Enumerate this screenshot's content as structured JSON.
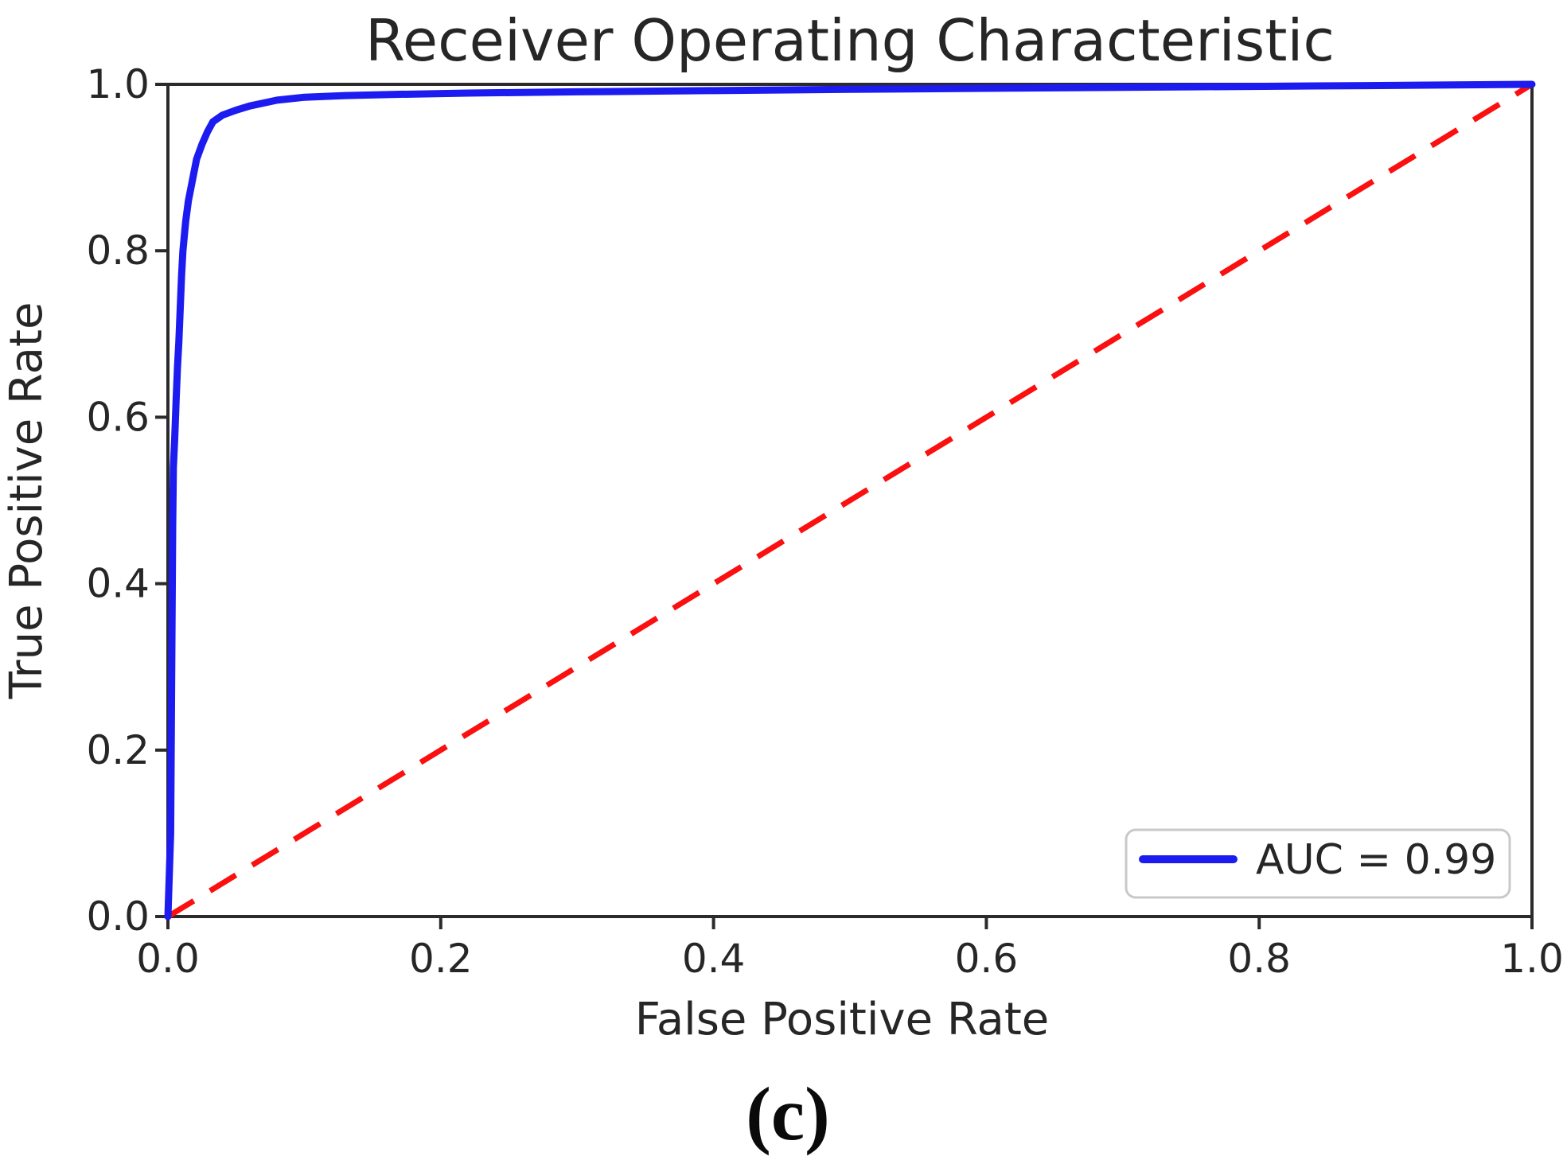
{
  "figure": {
    "title": "Receiver Operating Characteristic",
    "xlabel": "False Positive Rate",
    "ylabel": "True Positive Rate",
    "caption": "(c)"
  },
  "legend": {
    "label": "AUC = 0.99"
  },
  "colors": {
    "roc_line": "#1c1cf0",
    "chance_line": "#fb0f0f",
    "axis": "#2b2b2b",
    "text": "#262626",
    "legend_border": "#c9c9c9",
    "background": "#ffffff"
  },
  "chart_data": {
    "type": "line",
    "title": "Receiver Operating Characteristic",
    "xlabel": "False Positive Rate",
    "ylabel": "True Positive Rate",
    "xlim": [
      0.0,
      1.0
    ],
    "ylim": [
      0.0,
      1.0
    ],
    "x_ticks": [
      0.0,
      0.2,
      0.4,
      0.6,
      0.8,
      1.0
    ],
    "y_ticks": [
      0.0,
      0.2,
      0.4,
      0.6,
      0.8,
      1.0
    ],
    "grid": false,
    "legend_position": "lower right",
    "auc": 0.99,
    "series": [
      {
        "name": "ROC curve",
        "label": "AUC = 0.99",
        "color": "#1c1cf0",
        "style": "solid",
        "points": [
          [
            0.0,
            0.0
          ],
          [
            0.002,
            0.1
          ],
          [
            0.003,
            0.35
          ],
          [
            0.0035,
            0.47
          ],
          [
            0.004,
            0.54
          ],
          [
            0.005,
            0.575
          ],
          [
            0.006,
            0.62
          ],
          [
            0.007,
            0.66
          ],
          [
            0.008,
            0.69
          ],
          [
            0.009,
            0.73
          ],
          [
            0.01,
            0.77
          ],
          [
            0.011,
            0.8
          ],
          [
            0.013,
            0.835
          ],
          [
            0.015,
            0.86
          ],
          [
            0.018,
            0.885
          ],
          [
            0.021,
            0.91
          ],
          [
            0.025,
            0.928
          ],
          [
            0.029,
            0.943
          ],
          [
            0.033,
            0.955
          ],
          [
            0.04,
            0.963
          ],
          [
            0.05,
            0.969
          ],
          [
            0.06,
            0.974
          ],
          [
            0.08,
            0.981
          ],
          [
            0.1,
            0.9845
          ],
          [
            0.13,
            0.9865
          ],
          [
            0.17,
            0.988
          ],
          [
            0.22,
            0.9895
          ],
          [
            0.3,
            0.991
          ],
          [
            0.4,
            0.9925
          ],
          [
            0.5,
            0.994
          ],
          [
            0.62,
            0.9955
          ],
          [
            0.75,
            0.997
          ],
          [
            0.88,
            0.9985
          ],
          [
            1.0,
            1.0
          ]
        ]
      },
      {
        "name": "Chance diagonal",
        "label": "",
        "color": "#fb0f0f",
        "style": "dashed",
        "points": [
          [
            0.0,
            0.0
          ],
          [
            1.0,
            1.0
          ]
        ]
      }
    ]
  }
}
